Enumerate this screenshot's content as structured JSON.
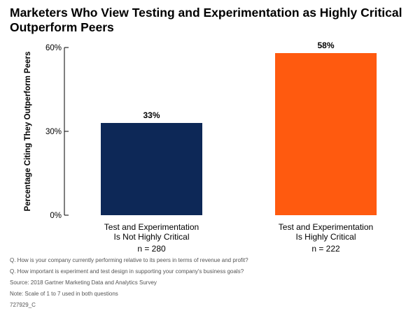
{
  "chart_data": {
    "type": "bar",
    "title_lines": [
      "Marketers Who View Testing and Experimentation as Highly Critical",
      "Outperform Peers"
    ],
    "ylabel": "Percentage Citing They Outperform Peers",
    "xlabel": "",
    "ylim": [
      0,
      60
    ],
    "yticks": [
      0,
      30,
      60
    ],
    "ytick_labels": [
      "0%",
      "30%",
      "60%"
    ],
    "grid": false,
    "categories": [
      {
        "lines": [
          "Test and Experimentation",
          "Is Not Highly Critical"
        ],
        "n": "n = 280"
      },
      {
        "lines": [
          "Test and Experimentation",
          "Is Highly Critical"
        ],
        "n": "n = 222"
      }
    ],
    "values": [
      33,
      58
    ],
    "value_labels": [
      "33%",
      "58%"
    ],
    "colors": [
      "#0d2857",
      "#ff5a0f"
    ]
  },
  "footnotes": [
    "Q. How is your company currently performing relative to its peers in terms of revenue and profit?",
    "Q. How important is experiment and test design in supporting your company's business goals?",
    "Source: 2018 Gartner Marketing Data and Analytics Survey",
    "Note: Scale of 1 to 7 used in both questions",
    "727929_C"
  ]
}
